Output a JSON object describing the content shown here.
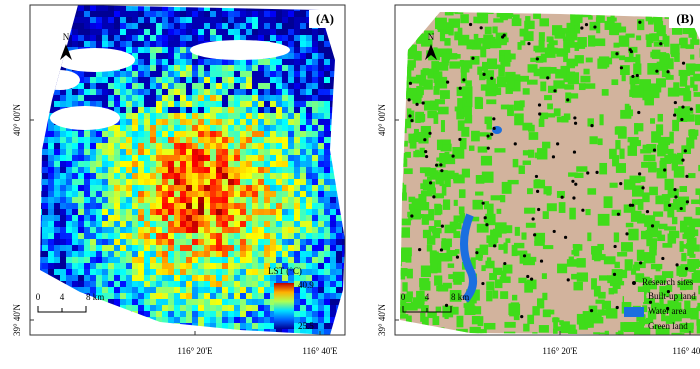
{
  "panels": [
    {
      "label": "(A)",
      "north": "N",
      "lat_labels": [
        "40° 00'N",
        "39° 40'N"
      ],
      "lon_labels": [
        "116° 20'E",
        "116° 40'E"
      ],
      "scale": [
        "0",
        "4",
        "8 km"
      ],
      "colorbar": {
        "title": "LST (°C)",
        "max": "40.9",
        "min": "25.5"
      }
    },
    {
      "label": "(B)",
      "north": "N",
      "lat_labels": [
        "40° 00'N",
        "39° 40'N"
      ],
      "lon_labels": [
        "116° 20'E",
        "116° 40'E"
      ],
      "scale": [
        "0",
        "4",
        "8 km"
      ],
      "legend": [
        "Research sites",
        "Built-up land",
        "Water area",
        "Green land"
      ]
    }
  ]
}
